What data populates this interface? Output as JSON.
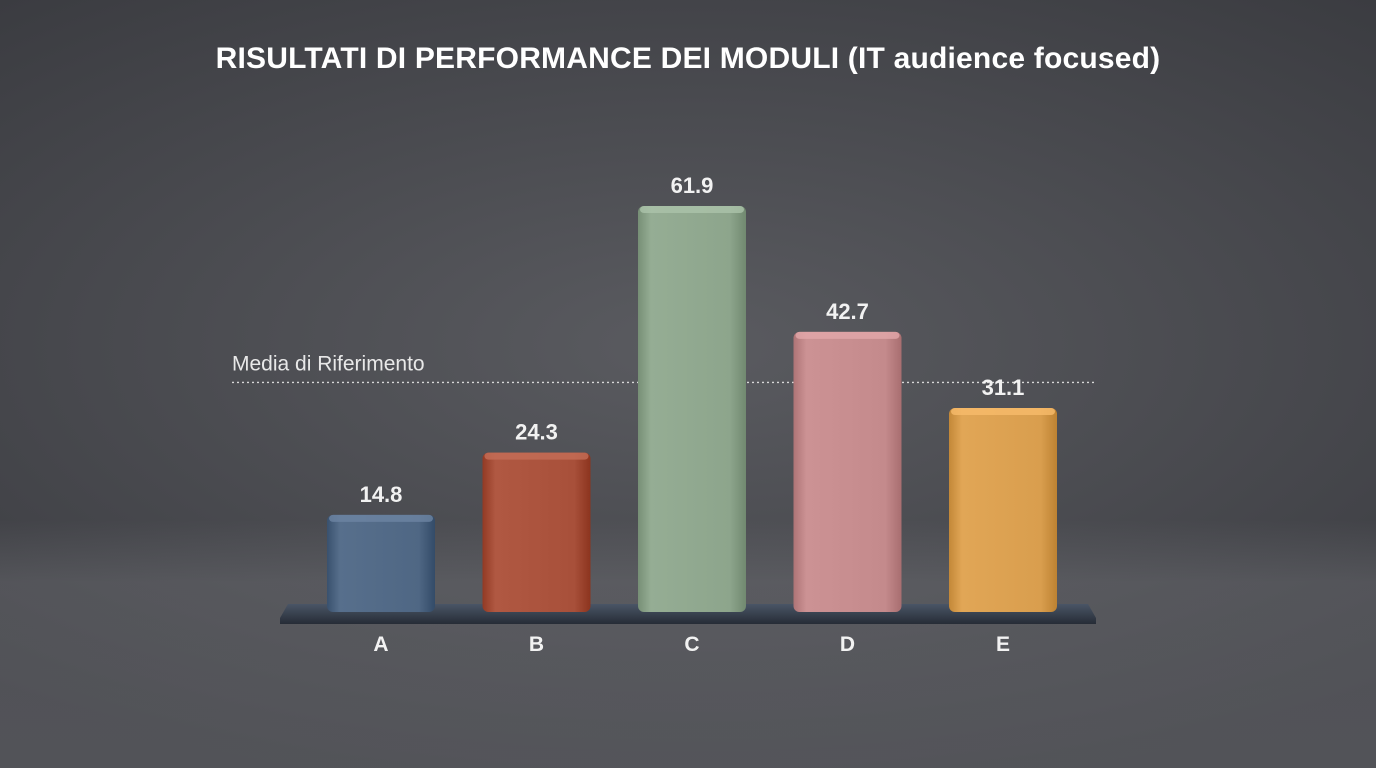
{
  "chart_data": {
    "type": "bar",
    "title": "RISULTATI DI PERFORMANCE DEI MODULI (IT audience focused)",
    "xlabel": "",
    "ylabel": "",
    "categories": [
      "A",
      "B",
      "C",
      "D",
      "E"
    ],
    "values": [
      14.8,
      24.3,
      61.9,
      42.7,
      31.1
    ],
    "value_labels": [
      "14.8",
      "24.3",
      "61.9",
      "42.7",
      "31.1"
    ],
    "colors": [
      "#4f6784",
      "#a8503a",
      "#8da58c",
      "#c48a8c",
      "#d99e4e"
    ],
    "ylim": [
      0,
      61.9
    ],
    "grid": false,
    "legend": "none",
    "reference_line": {
      "label": "Media di Riferimento",
      "value": 35.0
    }
  }
}
